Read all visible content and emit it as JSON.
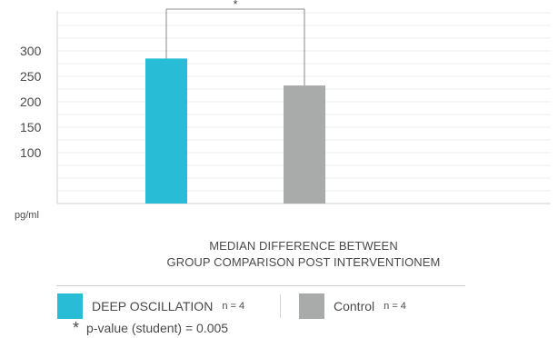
{
  "chart_data": {
    "type": "bar",
    "categories": [
      "DEEP OSCILLATION",
      "Control"
    ],
    "values": [
      285,
      232
    ],
    "colors": [
      "#29bcd6",
      "#a9abab"
    ],
    "y_ticks": [
      "100",
      "150",
      "200",
      "250",
      "300"
    ],
    "y_tick_values": [
      100,
      150,
      200,
      250,
      300
    ],
    "ylim": [
      0,
      350
    ],
    "grid": true,
    "ylabel": "pg/ml",
    "title_lines": [
      "MEDIAN DIFFERENCE BETWEEN",
      "GROUP COMPARISON POST INTERVENTIONEM"
    ],
    "significance": {
      "between": [
        0,
        1
      ],
      "label": "*"
    }
  },
  "legend": [
    {
      "label": "DEEP OSCILLATION",
      "n": "n = 4",
      "color": "#29bcd6"
    },
    {
      "label": "Control",
      "n": "n = 4",
      "color": "#a9abab"
    }
  ],
  "footnote": {
    "star": "*",
    "text": "p-value (student) = 0.005"
  }
}
